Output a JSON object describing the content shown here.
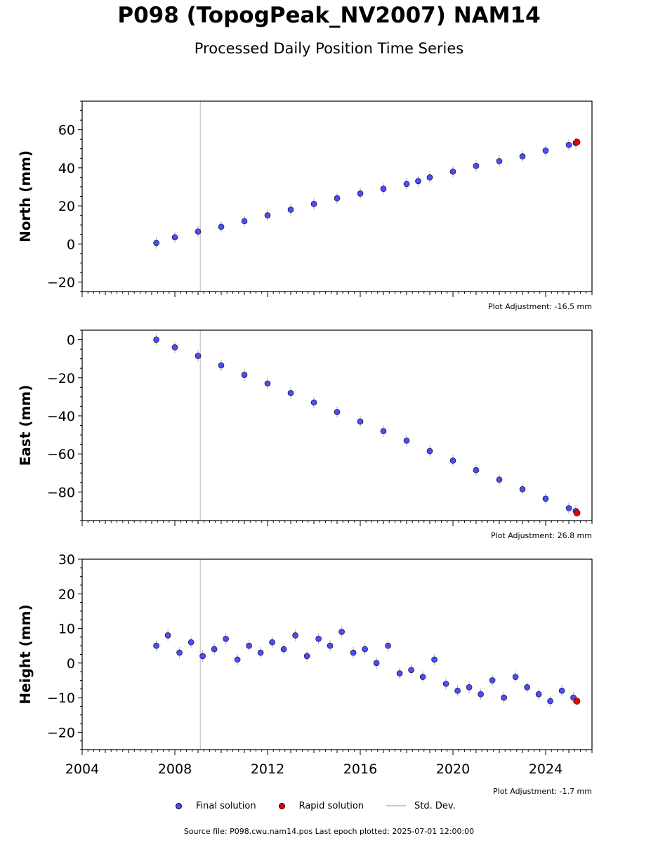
{
  "title": "P098 (TopogPeak_NV2007) NAM14",
  "subtitle": "Processed Daily Position Time Series",
  "legend": {
    "final_label": "Final solution",
    "rapid_label": "Rapid solution",
    "std_label": "Std. Dev."
  },
  "footer": "Source file: P098.cwu.nam14.pos  Last epoch plotted: 2025-07-01 12:00:00",
  "colors": {
    "final": "#4c4cff",
    "rapid": "#ee0000",
    "std_dev": "#b0b0b0",
    "reference_line": "#cccccc"
  },
  "chart_data": [
    {
      "type": "scatter",
      "name": "north",
      "ylabel": "North (mm)",
      "xlim": [
        2004.0,
        2026.0
      ],
      "ylim": [
        -25,
        75
      ],
      "y_ticks": [
        -20,
        0,
        20,
        40,
        60
      ],
      "y_tick_labels": [
        "−20",
        "0",
        "20",
        "40",
        "60"
      ],
      "adjustment_label": "Plot Adjustment: -16.5 mm",
      "reference_line_x": 2009.1,
      "series": [
        {
          "name": "Final solution",
          "x": [
            2007.2,
            2008.0,
            2009.0,
            2010.0,
            2011.0,
            2012.0,
            2013.0,
            2014.0,
            2015.0,
            2016.0,
            2017.0,
            2018.0,
            2018.5,
            2019.0,
            2020.0,
            2021.0,
            2022.0,
            2023.0,
            2024.0,
            2025.0,
            2025.3
          ],
          "y": [
            0.5,
            3.5,
            6.5,
            9.0,
            12.0,
            15.0,
            18.0,
            21.0,
            24.0,
            26.5,
            29.0,
            31.5,
            33.0,
            35.0,
            38.0,
            41.0,
            43.5,
            46.0,
            49.0,
            52.0,
            53.0
          ]
        },
        {
          "name": "Rapid solution",
          "x": [
            2025.35
          ],
          "y": [
            53.5
          ]
        }
      ]
    },
    {
      "type": "scatter",
      "name": "east",
      "ylabel": "East (mm)",
      "xlim": [
        2004.0,
        2026.0
      ],
      "ylim": [
        -95,
        5
      ],
      "y_ticks": [
        -80,
        -60,
        -40,
        -20,
        0
      ],
      "y_tick_labels": [
        "−80",
        "−60",
        "−40",
        "−20",
        "0"
      ],
      "adjustment_label": "Plot Adjustment: 26.8 mm",
      "reference_line_x": 2009.1,
      "series": [
        {
          "name": "Final solution",
          "x": [
            2007.2,
            2008.0,
            2009.0,
            2010.0,
            2011.0,
            2012.0,
            2013.0,
            2014.0,
            2015.0,
            2016.0,
            2017.0,
            2018.0,
            2019.0,
            2020.0,
            2021.0,
            2022.0,
            2023.0,
            2024.0,
            2025.0,
            2025.3
          ],
          "y": [
            0.0,
            -4.0,
            -8.5,
            -13.5,
            -18.5,
            -23.0,
            -28.0,
            -33.0,
            -38.0,
            -43.0,
            -48.0,
            -53.0,
            -58.5,
            -63.5,
            -68.5,
            -73.5,
            -78.5,
            -83.5,
            -88.5,
            -90.0
          ]
        },
        {
          "name": "Rapid solution",
          "x": [
            2025.35
          ],
          "y": [
            -91.0
          ]
        }
      ]
    },
    {
      "type": "scatter",
      "name": "height",
      "ylabel": "Height (mm)",
      "xlim": [
        2004.0,
        2026.0
      ],
      "ylim": [
        -25,
        30
      ],
      "y_ticks": [
        -20,
        -10,
        0,
        10,
        20,
        30
      ],
      "y_tick_labels": [
        "−20",
        "−10",
        "0",
        "10",
        "20",
        "30"
      ],
      "x_ticks": [
        2004,
        2008,
        2012,
        2016,
        2020,
        2024
      ],
      "x_tick_labels": [
        "2004",
        "2008",
        "2012",
        "2016",
        "2020",
        "2024"
      ],
      "adjustment_label": "Plot Adjustment: -1.7 mm",
      "reference_line_x": 2009.1,
      "series": [
        {
          "name": "Final solution",
          "x": [
            2007.2,
            2007.7,
            2008.2,
            2008.7,
            2009.2,
            2009.7,
            2010.2,
            2010.7,
            2011.2,
            2011.7,
            2012.2,
            2012.7,
            2013.2,
            2013.7,
            2014.2,
            2014.7,
            2015.2,
            2015.7,
            2016.2,
            2016.7,
            2017.2,
            2017.7,
            2018.2,
            2018.7,
            2019.2,
            2019.7,
            2020.2,
            2020.7,
            2021.2,
            2021.7,
            2022.2,
            2022.7,
            2023.2,
            2023.7,
            2024.2,
            2024.7,
            2025.2
          ],
          "y": [
            5,
            8,
            3,
            6,
            2,
            4,
            7,
            1,
            5,
            3,
            6,
            4,
            8,
            2,
            7,
            5,
            9,
            3,
            4,
            0,
            5,
            -3,
            -2,
            -4,
            1,
            -6,
            -8,
            -7,
            -9,
            -5,
            -10,
            -4,
            -7,
            -9,
            -11,
            -8,
            -10
          ]
        },
        {
          "name": "Rapid solution",
          "x": [
            2025.35
          ],
          "y": [
            -11
          ]
        }
      ]
    }
  ]
}
